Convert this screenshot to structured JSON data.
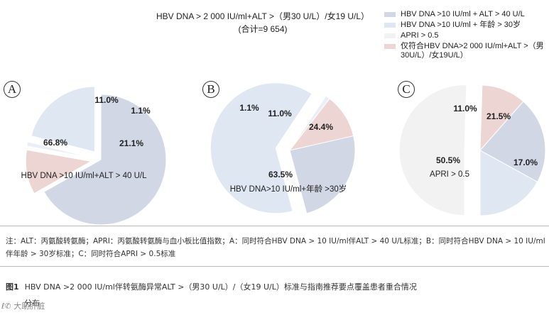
{
  "title": {
    "line1": "HBV DNA > 2 000 IU/ml+ALT >（男30 U/L）/女19 U/L）",
    "line2": "(合计=9 654)"
  },
  "legend": [
    {
      "label": "HBV DNA >10 IU/ml + ALT > 40 U/L",
      "color": "#d2d7e6"
    },
    {
      "label": "HBV DNA >10 IU/ml + 年龄 > 30岁",
      "color": "#dfe7f3"
    },
    {
      "label": "APRI > 0.5",
      "color": "#f2f2f2"
    },
    {
      "label": "仅符合HBV DNA>2 000 IU/ml+ALT >（男30U/L）/女19U/L）",
      "color": "#ecd5d2"
    }
  ],
  "colors": {
    "criteria_main": "#d2d7e6",
    "age_or_apri": "#dfe7f3",
    "only_hbv": "#ecd5d2",
    "small": "#e9eef7"
  },
  "chart_data": [
    {
      "type": "pie",
      "panel": "A",
      "slices": [
        {
          "label": "HBV DNA >10 IU/ml+ALT > 40 U/L",
          "value": 66.8,
          "display": "66.8%",
          "color": "#d2d7e6",
          "exploded": false
        },
        {
          "label": "",
          "value": 11.0,
          "display": "11.0%",
          "color": "#ecd5d2",
          "exploded": true
        },
        {
          "label": "",
          "value": 1.1,
          "display": "1.1%",
          "color": "#e9eef7",
          "exploded": true
        },
        {
          "label": "",
          "value": 21.1,
          "display": "21.1%",
          "color": "#dfe7f3",
          "exploded": true
        }
      ]
    },
    {
      "type": "pie",
      "panel": "B",
      "slices": [
        {
          "label": "HBV DNA>10 IU/ml+年龄 >30岁",
          "value": 63.5,
          "display": "63.5%",
          "color": "#dfe7f3",
          "exploded": true
        },
        {
          "label": "",
          "value": 1.1,
          "display": "1.1%",
          "color": "#e9eef7",
          "exploded": false
        },
        {
          "label": "",
          "value": 11.0,
          "display": "11.0%",
          "color": "#ecd5d2",
          "exploded": false
        },
        {
          "label": "",
          "value": 24.4,
          "display": "24.4%",
          "color": "#d2d7e6",
          "exploded": false
        }
      ]
    },
    {
      "type": "pie",
      "panel": "C",
      "slices": [
        {
          "label": "APRI > 0.5",
          "value": 50.5,
          "display": "50.5%",
          "color": "#f2f2f2",
          "exploded": true
        },
        {
          "label": "",
          "value": 11.0,
          "display": "11.0%",
          "color": "#ecd5d2",
          "exploded": false
        },
        {
          "label": "",
          "value": 21.5,
          "display": "21.5%",
          "color": "#d2d7e6",
          "exploded": false
        },
        {
          "label": "",
          "value": 17.0,
          "display": "17.0%",
          "color": "#dfe7f3",
          "exploded": false
        }
      ]
    }
  ],
  "note": "注：ALT：丙氨酸转氨酶；APRI：丙氨酸转氨酶与血小板比值指数；A：同时符合HBV DNA > 10 IU/ml伴ALT > 40 U/L标准；B：同时符合HBV DNA > 10 IU/ml伴年龄 > 30岁标准；C：同时符合APRI > 0.5标准",
  "caption": {
    "label": "图1",
    "text": "HBV DNA >2 000 IU/ml伴转氨酶异常ALT >（男30 U/L）/（女19 U/L）标准与指南推荐要点覆盖患者重合情况",
    "cont": "分布"
  }
}
